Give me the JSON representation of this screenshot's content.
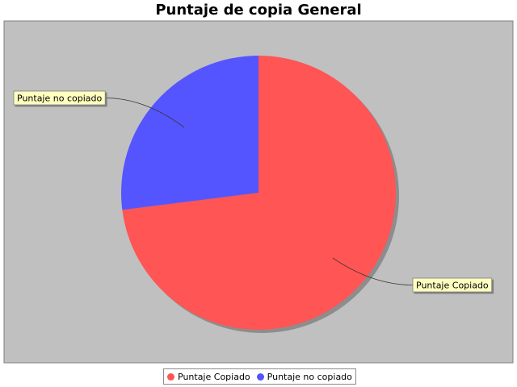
{
  "chart_data": {
    "type": "pie",
    "title": "Puntaje de copia General",
    "slices": [
      {
        "label": "Puntaje Copiado",
        "value": 73,
        "color": "#FF5555"
      },
      {
        "label": "Puntaje no copiado",
        "value": 27,
        "color": "#5555FF"
      }
    ],
    "plot_background": "#C0C0C0",
    "label_background": "#FFFFC0",
    "legend_position": "bottom"
  }
}
